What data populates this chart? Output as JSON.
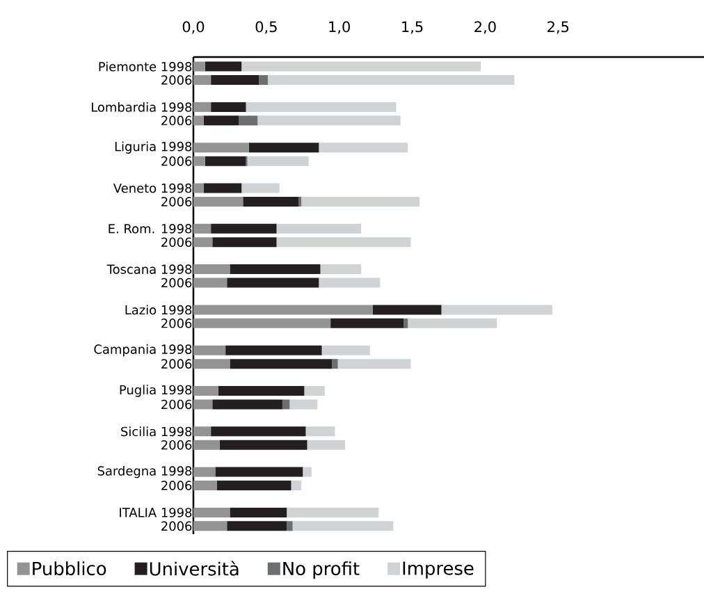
{
  "chart_data": {
    "type": "bar",
    "orientation": "horizontal",
    "stacked": true,
    "categories": [
      "Piemonte 1998",
      "2006",
      null,
      "Lombardia 1998",
      "2006",
      null,
      "Liguria 1998",
      "2006",
      null,
      "Veneto 1998",
      "2006",
      null,
      "E. Rom. 1998",
      "2006",
      null,
      "Toscana 1998",
      "2006",
      null,
      "Lazio 1998",
      "2006",
      null,
      "Campania 1998",
      "2006",
      null,
      "Puglia 1998",
      "2006",
      null,
      "Sicilia 1998",
      "2006",
      null,
      "Sardegna 1998",
      "2006",
      null,
      "ITALIA 1998",
      "2006"
    ],
    "series": [
      {
        "name": "Pubblico",
        "color": "#939393",
        "values": [
          0.08,
          0.12,
          null,
          0.12,
          0.07,
          null,
          0.38,
          0.08,
          null,
          0.07,
          0.34,
          null,
          0.12,
          0.13,
          null,
          0.25,
          0.23,
          null,
          1.23,
          0.94,
          null,
          0.22,
          0.25,
          null,
          0.17,
          0.13,
          null,
          0.12,
          0.18,
          null,
          0.15,
          0.16,
          null,
          0.25,
          0.23
        ]
      },
      {
        "name": "Università",
        "color": "#231f20",
        "values": [
          0.25,
          0.33,
          null,
          0.24,
          0.24,
          null,
          0.48,
          0.28,
          null,
          0.26,
          0.38,
          null,
          0.45,
          0.44,
          null,
          0.62,
          0.63,
          null,
          0.47,
          0.5,
          null,
          0.66,
          0.7,
          null,
          0.59,
          0.48,
          null,
          0.65,
          0.6,
          null,
          0.6,
          0.51,
          null,
          0.39,
          0.41
        ]
      },
      {
        "name": "No profit",
        "color": "#6d6e70",
        "values": [
          0,
          0.06,
          null,
          0,
          0.13,
          null,
          0,
          0.01,
          null,
          0,
          0.02,
          null,
          0,
          0,
          null,
          0,
          0,
          null,
          0,
          0.03,
          null,
          0,
          0.04,
          null,
          0,
          0.05,
          null,
          0,
          0,
          null,
          0,
          0,
          null,
          0,
          0.04
        ]
      },
      {
        "name": "Imprese",
        "color": "#d1d2d4",
        "values": [
          1.64,
          1.69,
          null,
          1.03,
          0.98,
          null,
          0.61,
          0.42,
          null,
          0.26,
          0.81,
          null,
          0.58,
          0.92,
          null,
          0.28,
          0.42,
          null,
          0.76,
          0.61,
          null,
          0.33,
          0.5,
          null,
          0.14,
          0.19,
          null,
          0.2,
          0.26,
          null,
          0.06,
          0.07,
          null,
          0.63,
          0.69
        ]
      }
    ],
    "xlim": [
      0,
      3.5
    ],
    "xticks": [
      {
        "value": 0,
        "label": "0,0"
      },
      {
        "value": 0.5,
        "label": "0,5"
      },
      {
        "value": 1,
        "label": "1,0"
      },
      {
        "value": 1.5,
        "label": "1,5"
      },
      {
        "value": 2,
        "label": "2,0"
      },
      {
        "value": 2.5,
        "label": "2,5"
      }
    ],
    "legend": "bottom",
    "grid": false
  }
}
